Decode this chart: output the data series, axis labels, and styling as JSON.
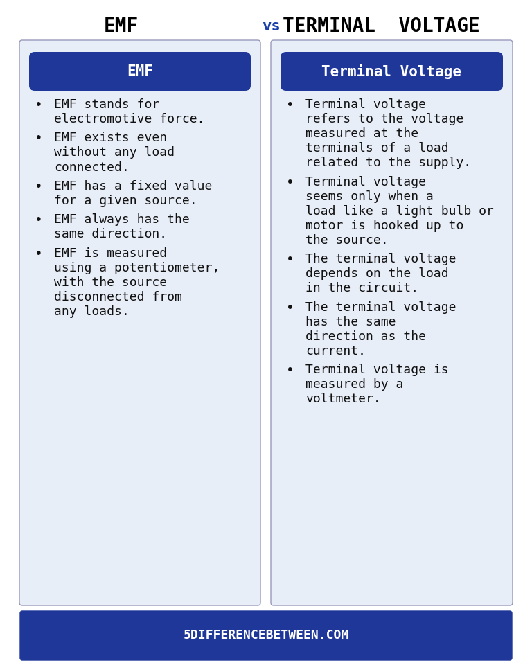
{
  "title_left": "EMF",
  "title_vs": "vs",
  "title_right": "TERMINAL  VOLTAGE",
  "title_fontsize": 20,
  "title_color_left": "#000000",
  "title_color_vs": "#1a3faa",
  "title_color_right": "#000000",
  "header_left": "EMF",
  "header_right": "Terminal Voltage",
  "header_bg_color": "#1e3799",
  "header_text_color": "#ffffff",
  "panel_bg_color": "#e8eef8",
  "panel_border_color": "#9999bb",
  "footer_bg_color": "#1e3799",
  "footer_text": "5DIFFERENCEBETWEEN.COM",
  "footer_text_color": "#ffffff",
  "bg_color": "#ffffff",
  "left_bullets": [
    "EMF stands for\nelectromotive force.",
    "EMF exists even\nwithout any load\nconnected.",
    "EMF has a fixed value\nfor a given source.",
    "EMF always has the\nsame direction.",
    "EMF is measured\nusing a potentiometer,\nwith the source\ndisconnected from\nany loads."
  ],
  "right_bullets": [
    "Terminal voltage\nrefers to the voltage\nmeasured at the\nterminals of a load\nrelated to the supply.",
    "Terminal voltage\nseems only when a\nload like a light bulb or\nmotor is hooked up to\nthe source.",
    "The terminal voltage\ndepends on the load\nin the circuit.",
    "The terminal voltage\nhas the same\ndirection as the\ncurrent.",
    "Terminal voltage is\nmeasured by a\nvoltmeter."
  ],
  "bullet_fontsize": 13,
  "header_fontsize": 15,
  "footer_fontsize": 13
}
